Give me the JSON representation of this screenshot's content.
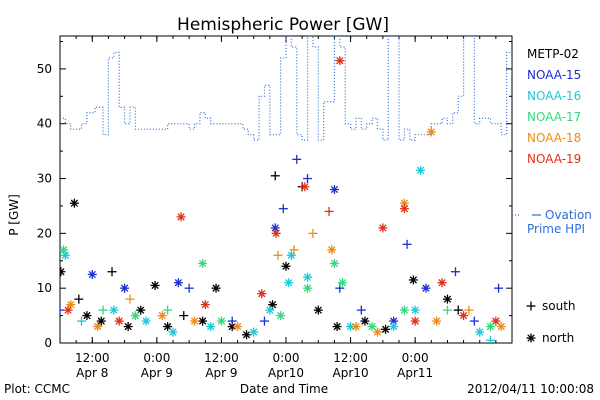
{
  "chart_data": {
    "type": "scatter",
    "title": "Hemispheric Power [GW]",
    "ylabel": "P [GW]",
    "xlabel": "Date and Time",
    "ylim": [
      0,
      56
    ],
    "xlim": [
      "2012-04-08 06:00",
      "2012-04-11 18:00"
    ],
    "y_ticks": [
      0,
      10,
      20,
      30,
      40,
      50
    ],
    "x_ticks": [
      {
        "t": "2012-04-08 12:00",
        "line1": "12:00",
        "line2": "Apr 8"
      },
      {
        "t": "2012-04-09 00:00",
        "line1": "0:00",
        "line2": "Apr 9"
      },
      {
        "t": "2012-04-09 12:00",
        "line1": "12:00",
        "line2": "Apr 9"
      },
      {
        "t": "2012-04-10 00:00",
        "line1": "0:00",
        "line2": "Apr10"
      },
      {
        "t": "2012-04-10 12:00",
        "line1": "12:00",
        "line2": "Apr10"
      },
      {
        "t": "2012-04-11 00:00",
        "line1": "0:00",
        "line2": "Apr11"
      }
    ],
    "legend": [
      "METP-02",
      "NOAA-15",
      "NOAA-16",
      "NOAA-17",
      "NOAA-18",
      "NOAA-19"
    ],
    "colors": {
      "METP-02": "#000000",
      "NOAA-15": "#1c2fd0",
      "NOAA-16": "#1ec8d8",
      "NOAA-17": "#33d87f",
      "NOAA-18": "#f08c14",
      "NOAA-19": "#e03018",
      "ovation": "#2f6fd8"
    },
    "ovation_label": [
      "Ovation",
      "Prime HPI"
    ],
    "marker_key": {
      "south_symbol": "+",
      "south_label": "south",
      "north_symbol": "*",
      "north_label": "north"
    },
    "ovation": [
      {
        "t": "2012-04-08 06:00",
        "v": 41
      },
      {
        "t": "2012-04-08 07:00",
        "v": 40
      },
      {
        "t": "2012-04-08 08:00",
        "v": 39
      },
      {
        "t": "2012-04-08 10:00",
        "v": 40
      },
      {
        "t": "2012-04-08 11:00",
        "v": 42
      },
      {
        "t": "2012-04-08 12:30",
        "v": 43
      },
      {
        "t": "2012-04-08 14:00",
        "v": 38
      },
      {
        "t": "2012-04-08 15:00",
        "v": 52
      },
      {
        "t": "2012-04-08 16:00",
        "v": 53
      },
      {
        "t": "2012-04-08 17:00",
        "v": 43
      },
      {
        "t": "2012-04-08 18:00",
        "v": 40
      },
      {
        "t": "2012-04-08 19:00",
        "v": 43
      },
      {
        "t": "2012-04-08 20:00",
        "v": 39
      },
      {
        "t": "2012-04-08 22:00",
        "v": 39
      },
      {
        "t": "2012-04-09 00:00",
        "v": 39
      },
      {
        "t": "2012-04-09 02:00",
        "v": 40
      },
      {
        "t": "2012-04-09 04:00",
        "v": 40
      },
      {
        "t": "2012-04-09 06:00",
        "v": 39
      },
      {
        "t": "2012-04-09 07:00",
        "v": 40
      },
      {
        "t": "2012-04-09 08:00",
        "v": 42
      },
      {
        "t": "2012-04-09 09:00",
        "v": 41
      },
      {
        "t": "2012-04-09 10:00",
        "v": 40
      },
      {
        "t": "2012-04-09 12:00",
        "v": 40
      },
      {
        "t": "2012-04-09 14:00",
        "v": 40
      },
      {
        "t": "2012-04-09 16:00",
        "v": 39
      },
      {
        "t": "2012-04-09 17:00",
        "v": 38
      },
      {
        "t": "2012-04-09 18:00",
        "v": 37
      },
      {
        "t": "2012-04-09 19:00",
        "v": 45
      },
      {
        "t": "2012-04-09 20:00",
        "v": 47
      },
      {
        "t": "2012-04-09 21:00",
        "v": 38
      },
      {
        "t": "2012-04-09 22:00",
        "v": 38
      },
      {
        "t": "2012-04-09 23:00",
        "v": 52
      },
      {
        "t": "2012-04-10 00:00",
        "v": 56
      },
      {
        "t": "2012-04-10 01:00",
        "v": 54
      },
      {
        "t": "2012-04-10 02:00",
        "v": 38
      },
      {
        "t": "2012-04-10 03:00",
        "v": 37
      },
      {
        "t": "2012-04-10 04:00",
        "v": 56
      },
      {
        "t": "2012-04-10 05:00",
        "v": 54
      },
      {
        "t": "2012-04-10 06:00",
        "v": 37
      },
      {
        "t": "2012-04-10 07:00",
        "v": 44
      },
      {
        "t": "2012-04-10 08:00",
        "v": 44
      },
      {
        "t": "2012-04-10 09:00",
        "v": 56
      },
      {
        "t": "2012-04-10 10:00",
        "v": 54
      },
      {
        "t": "2012-04-10 11:00",
        "v": 40
      },
      {
        "t": "2012-04-10 12:00",
        "v": 39
      },
      {
        "t": "2012-04-10 13:00",
        "v": 41
      },
      {
        "t": "2012-04-10 14:00",
        "v": 39
      },
      {
        "t": "2012-04-10 15:00",
        "v": 40
      },
      {
        "t": "2012-04-10 16:00",
        "v": 41
      },
      {
        "t": "2012-04-10 17:00",
        "v": 39
      },
      {
        "t": "2012-04-10 18:00",
        "v": 37
      },
      {
        "t": "2012-04-10 19:00",
        "v": 56
      },
      {
        "t": "2012-04-10 20:00",
        "v": 56
      },
      {
        "t": "2012-04-10 21:00",
        "v": 37
      },
      {
        "t": "2012-04-10 22:00",
        "v": 39
      },
      {
        "t": "2012-04-10 23:00",
        "v": 37
      },
      {
        "t": "2012-04-11 00:00",
        "v": 38
      },
      {
        "t": "2012-04-11 02:00",
        "v": 38
      },
      {
        "t": "2012-04-11 03:00",
        "v": 40
      },
      {
        "t": "2012-04-11 05:00",
        "v": 41
      },
      {
        "t": "2012-04-11 06:00",
        "v": 40
      },
      {
        "t": "2012-04-11 07:00",
        "v": 42
      },
      {
        "t": "2012-04-11 08:00",
        "v": 45
      },
      {
        "t": "2012-04-11 09:00",
        "v": 56
      },
      {
        "t": "2012-04-11 10:00",
        "v": 56
      },
      {
        "t": "2012-04-11 11:00",
        "v": 40
      },
      {
        "t": "2012-04-11 12:00",
        "v": 41
      },
      {
        "t": "2012-04-11 14:00",
        "v": 40
      },
      {
        "t": "2012-04-11 16:00",
        "v": 38
      },
      {
        "t": "2012-04-11 17:00",
        "v": 53
      },
      {
        "t": "2012-04-11 18:00",
        "v": 49
      }
    ],
    "series": [
      {
        "name": "METP-02",
        "points": [
          {
            "t": "2012-04-08 06:10",
            "v": 13,
            "m": "*"
          },
          {
            "t": "2012-04-08 08:40",
            "v": 25.5,
            "m": "*"
          },
          {
            "t": "2012-04-08 09:30",
            "v": 8,
            "m": "+"
          },
          {
            "t": "2012-04-08 11:00",
            "v": 5,
            "m": "*"
          },
          {
            "t": "2012-04-08 13:40",
            "v": 4,
            "m": "*"
          },
          {
            "t": "2012-04-08 15:40",
            "v": 13,
            "m": "+"
          },
          {
            "t": "2012-04-08 18:40",
            "v": 3,
            "m": "*"
          },
          {
            "t": "2012-04-08 21:00",
            "v": 6,
            "m": "*"
          },
          {
            "t": "2012-04-08 23:40",
            "v": 10.5,
            "m": "*"
          },
          {
            "t": "2012-04-09 02:00",
            "v": 3,
            "m": "*"
          },
          {
            "t": "2012-04-09 05:00",
            "v": 5,
            "m": "+"
          },
          {
            "t": "2012-04-09 08:30",
            "v": 4,
            "m": "*"
          },
          {
            "t": "2012-04-09 11:00",
            "v": 10,
            "m": "*"
          },
          {
            "t": "2012-04-09 14:00",
            "v": 3,
            "m": "*"
          },
          {
            "t": "2012-04-09 16:40",
            "v": 1.5,
            "m": "*"
          },
          {
            "t": "2012-04-09 21:30",
            "v": 7,
            "m": "*"
          },
          {
            "t": "2012-04-09 22:00",
            "v": 30.5,
            "m": "+"
          },
          {
            "t": "2012-04-10 00:00",
            "v": 14,
            "m": "*"
          },
          {
            "t": "2012-04-10 03:00",
            "v": 28.5,
            "m": "+"
          },
          {
            "t": "2012-04-10 06:00",
            "v": 6,
            "m": "*"
          },
          {
            "t": "2012-04-10 09:30",
            "v": 3,
            "m": "*"
          },
          {
            "t": "2012-04-10 14:40",
            "v": 4,
            "m": "*"
          },
          {
            "t": "2012-04-10 18:30",
            "v": 2.5,
            "m": "*"
          },
          {
            "t": "2012-04-10 23:40",
            "v": 11.5,
            "m": "*"
          },
          {
            "t": "2012-04-11 06:00",
            "v": 8,
            "m": "*"
          },
          {
            "t": "2012-04-11 08:00",
            "v": 6,
            "m": "+"
          }
        ]
      },
      {
        "name": "NOAA-15",
        "points": [
          {
            "t": "2012-04-08 06:00",
            "v": 6,
            "m": "+"
          },
          {
            "t": "2012-04-08 12:00",
            "v": 12.5,
            "m": "*"
          },
          {
            "t": "2012-04-08 18:00",
            "v": 10,
            "m": "*"
          },
          {
            "t": "2012-04-09 04:00",
            "v": 11,
            "m": "*"
          },
          {
            "t": "2012-04-09 06:00",
            "v": 10,
            "m": "+"
          },
          {
            "t": "2012-04-09 14:00",
            "v": 4,
            "m": "+"
          },
          {
            "t": "2012-04-09 20:00",
            "v": 4,
            "m": "+"
          },
          {
            "t": "2012-04-09 22:00",
            "v": 21,
            "m": "*"
          },
          {
            "t": "2012-04-09 23:30",
            "v": 24.5,
            "m": "+"
          },
          {
            "t": "2012-04-10 02:00",
            "v": 33.5,
            "m": "+"
          },
          {
            "t": "2012-04-10 04:00",
            "v": 30,
            "m": "+"
          },
          {
            "t": "2012-04-10 09:00",
            "v": 28,
            "m": "*"
          },
          {
            "t": "2012-04-10 10:00",
            "v": 10,
            "m": "+"
          },
          {
            "t": "2012-04-10 14:00",
            "v": 6,
            "m": "+"
          },
          {
            "t": "2012-04-10 20:00",
            "v": 4,
            "m": "*"
          },
          {
            "t": "2012-04-10 22:30",
            "v": 18,
            "m": "+"
          },
          {
            "t": "2012-04-11 02:00",
            "v": 10,
            "m": "*"
          },
          {
            "t": "2012-04-11 07:30",
            "v": 13,
            "m": "+"
          },
          {
            "t": "2012-04-11 11:00",
            "v": 4,
            "m": "+"
          },
          {
            "t": "2012-04-11 15:30",
            "v": 10,
            "m": "+"
          }
        ]
      },
      {
        "name": "NOAA-16",
        "points": [
          {
            "t": "2012-04-08 07:00",
            "v": 16,
            "m": "*"
          },
          {
            "t": "2012-04-08 10:00",
            "v": 4,
            "m": "+"
          },
          {
            "t": "2012-04-08 16:00",
            "v": 6,
            "m": "*"
          },
          {
            "t": "2012-04-08 22:00",
            "v": 4,
            "m": "*"
          },
          {
            "t": "2012-04-09 03:00",
            "v": 2,
            "m": "*"
          },
          {
            "t": "2012-04-09 10:00",
            "v": 3,
            "m": "*"
          },
          {
            "t": "2012-04-09 18:00",
            "v": 2,
            "m": "*"
          },
          {
            "t": "2012-04-09 21:00",
            "v": 6,
            "m": "*"
          },
          {
            "t": "2012-04-10 00:30",
            "v": 11,
            "m": "*"
          },
          {
            "t": "2012-04-10 01:00",
            "v": 16,
            "m": "*"
          },
          {
            "t": "2012-04-10 04:00",
            "v": 12,
            "m": "*"
          },
          {
            "t": "2012-04-10 12:00",
            "v": 3,
            "m": "*"
          },
          {
            "t": "2012-04-10 20:00",
            "v": 3,
            "m": "*"
          },
          {
            "t": "2012-04-11 00:00",
            "v": 6,
            "m": "*"
          },
          {
            "t": "2012-04-11 01:00",
            "v": 31.5,
            "m": "*"
          },
          {
            "t": "2012-04-11 12:00",
            "v": 2,
            "m": "*"
          },
          {
            "t": "2012-04-11 14:00",
            "v": 0.5,
            "m": "+"
          }
        ]
      },
      {
        "name": "NOAA-17",
        "points": [
          {
            "t": "2012-04-08 06:40",
            "v": 17,
            "m": "*"
          },
          {
            "t": "2012-04-08 14:00",
            "v": 6,
            "m": "+"
          },
          {
            "t": "2012-04-08 20:00",
            "v": 5,
            "m": "*"
          },
          {
            "t": "2012-04-09 02:00",
            "v": 6,
            "m": "+"
          },
          {
            "t": "2012-04-09 08:30",
            "v": 14.5,
            "m": "*"
          },
          {
            "t": "2012-04-09 12:00",
            "v": 4,
            "m": "*"
          },
          {
            "t": "2012-04-09 23:00",
            "v": 5,
            "m": "*"
          },
          {
            "t": "2012-04-10 04:00",
            "v": 10,
            "m": "*"
          },
          {
            "t": "2012-04-10 09:00",
            "v": 14.5,
            "m": "*"
          },
          {
            "t": "2012-04-10 10:30",
            "v": 11,
            "m": "*"
          },
          {
            "t": "2012-04-10 16:00",
            "v": 3,
            "m": "*"
          },
          {
            "t": "2012-04-10 22:00",
            "v": 6,
            "m": "*"
          },
          {
            "t": "2012-04-11 06:00",
            "v": 6,
            "m": "+"
          },
          {
            "t": "2012-04-11 14:00",
            "v": 3,
            "m": "*"
          }
        ]
      },
      {
        "name": "NOAA-18",
        "points": [
          {
            "t": "2012-04-08 08:00",
            "v": 7,
            "m": "*"
          },
          {
            "t": "2012-04-08 13:00",
            "v": 3,
            "m": "*"
          },
          {
            "t": "2012-04-08 19:00",
            "v": 8,
            "m": "+"
          },
          {
            "t": "2012-04-09 01:00",
            "v": 5,
            "m": "*"
          },
          {
            "t": "2012-04-09 07:00",
            "v": 4,
            "m": "*"
          },
          {
            "t": "2012-04-09 15:00",
            "v": 3,
            "m": "*"
          },
          {
            "t": "2012-04-09 22:30",
            "v": 16,
            "m": "+"
          },
          {
            "t": "2012-04-10 01:30",
            "v": 17,
            "m": "+"
          },
          {
            "t": "2012-04-10 05:00",
            "v": 20,
            "m": "+"
          },
          {
            "t": "2012-04-10 08:30",
            "v": 17,
            "m": "*"
          },
          {
            "t": "2012-04-10 13:00",
            "v": 3,
            "m": "*"
          },
          {
            "t": "2012-04-10 17:00",
            "v": 2,
            "m": "*"
          },
          {
            "t": "2012-04-10 22:00",
            "v": 25.5,
            "m": "*"
          },
          {
            "t": "2012-04-11 03:00",
            "v": 38.5,
            "m": "*"
          },
          {
            "t": "2012-04-11 04:00",
            "v": 4,
            "m": "*"
          },
          {
            "t": "2012-04-11 10:00",
            "v": 6,
            "m": "+"
          },
          {
            "t": "2012-04-11 16:00",
            "v": 3,
            "m": "*"
          }
        ]
      },
      {
        "name": "NOAA-19",
        "points": [
          {
            "t": "2012-04-08 07:30",
            "v": 6,
            "m": "*"
          },
          {
            "t": "2012-04-08 17:00",
            "v": 4,
            "m": "*"
          },
          {
            "t": "2012-04-09 04:30",
            "v": 23,
            "m": "*"
          },
          {
            "t": "2012-04-09 09:00",
            "v": 7,
            "m": "*"
          },
          {
            "t": "2012-04-09 19:30",
            "v": 9,
            "m": "*"
          },
          {
            "t": "2012-04-09 22:10",
            "v": 20,
            "m": "*"
          },
          {
            "t": "2012-04-10 03:30",
            "v": 28.5,
            "m": "*"
          },
          {
            "t": "2012-04-10 08:00",
            "v": 24,
            "m": "+"
          },
          {
            "t": "2012-04-10 10:00",
            "v": 51.5,
            "m": "*"
          },
          {
            "t": "2012-04-10 18:00",
            "v": 21,
            "m": "*"
          },
          {
            "t": "2012-04-10 22:00",
            "v": 24.5,
            "m": "*"
          },
          {
            "t": "2012-04-11 00:00",
            "v": 4,
            "m": "*"
          },
          {
            "t": "2012-04-11 05:00",
            "v": 11,
            "m": "*"
          },
          {
            "t": "2012-04-11 09:00",
            "v": 5,
            "m": "*"
          },
          {
            "t": "2012-04-11 15:00",
            "v": 4,
            "m": "*"
          }
        ]
      }
    ]
  },
  "footer": {
    "left": "Plot: CCMC",
    "center": "Date and Time",
    "right": "2012/04/11 10:00:08"
  }
}
